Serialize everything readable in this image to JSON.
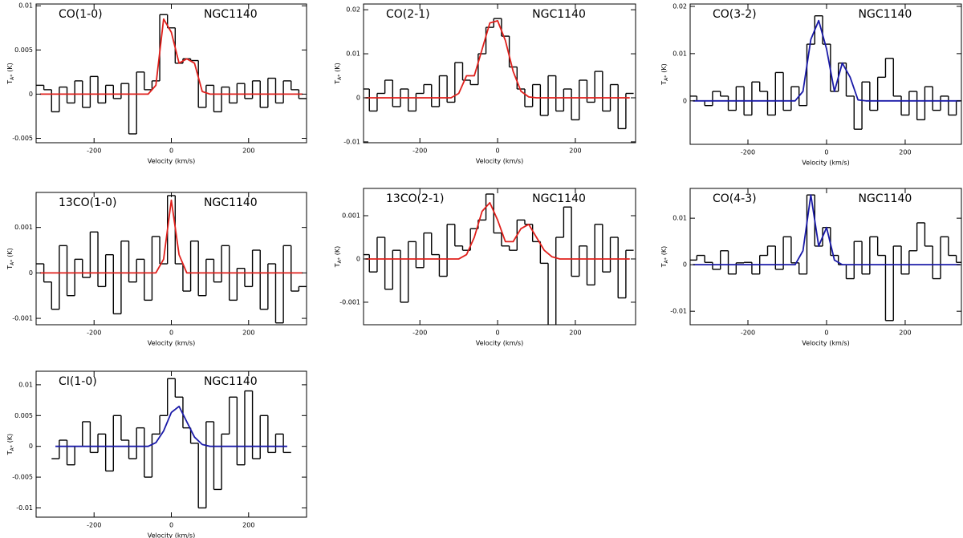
{
  "chart_data": [
    {
      "type": "line",
      "title": "CO(1-0)",
      "subtitle": "NGC1140",
      "xlabel": "Velocity (km/s)",
      "ylabel": {
        "main": "T",
        "sub": "A*",
        "unit": "(K)"
      },
      "xlim": [
        -350,
        350
      ],
      "ylim": [
        -0.0055,
        0.0102
      ],
      "xticks": [
        -200,
        0,
        200
      ],
      "yticks": [
        -0.005,
        0,
        0.005,
        0.01
      ],
      "x": [
        -340,
        -320,
        -300,
        -280,
        -260,
        -240,
        -220,
        -200,
        -180,
        -160,
        -140,
        -120,
        -100,
        -80,
        -60,
        -40,
        -20,
        0,
        20,
        40,
        60,
        80,
        100,
        120,
        140,
        160,
        180,
        200,
        220,
        240,
        260,
        280,
        300,
        320,
        340
      ],
      "series": [
        {
          "color": "#000000",
          "style": "step",
          "values": [
            0.001,
            0.0005,
            -0.002,
            0.0008,
            -0.001,
            0.0015,
            -0.0015,
            0.002,
            -0.001,
            0.001,
            -0.0005,
            0.0012,
            -0.0045,
            0.0025,
            0.0005,
            0.0015,
            0.009,
            0.0075,
            0.0035,
            0.004,
            0.0038,
            -0.0015,
            0.001,
            -0.002,
            0.0008,
            -0.001,
            0.0012,
            -0.0005,
            0.0015,
            -0.0015,
            0.0018,
            -0.001,
            0.0015,
            0.0005,
            -0.0005
          ]
        },
        {
          "color": "#e0201c",
          "style": "smooth",
          "values": [
            0,
            0,
            0,
            0,
            0,
            0,
            0,
            0,
            0,
            0,
            0,
            0,
            0,
            0,
            0,
            0.001,
            0.0085,
            0.007,
            0.0035,
            0.004,
            0.0035,
            0.0003,
            0,
            0,
            0,
            0,
            0,
            0,
            0,
            0,
            0,
            0,
            0,
            0,
            0
          ]
        }
      ]
    },
    {
      "type": "line",
      "title": "CO(2-1)",
      "subtitle": "NGC1140",
      "xlabel": "Velocity (km/s)",
      "ylabel": {
        "main": "T",
        "sub": "A*",
        "unit": "(K)"
      },
      "xlim": [
        -345,
        355
      ],
      "ylim": [
        -0.0102,
        0.0213
      ],
      "xticks": [
        -200,
        0,
        200
      ],
      "yticks": [
        -0.01,
        0,
        0.01,
        0.02
      ],
      "x": [
        -340,
        -320,
        -300,
        -280,
        -260,
        -240,
        -220,
        -200,
        -180,
        -160,
        -140,
        -120,
        -100,
        -80,
        -60,
        -40,
        -20,
        0,
        20,
        40,
        60,
        80,
        100,
        120,
        140,
        160,
        180,
        200,
        220,
        240,
        260,
        280,
        300,
        320,
        340
      ],
      "series": [
        {
          "color": "#000000",
          "style": "step",
          "values": [
            0.002,
            -0.003,
            0.001,
            0.004,
            -0.002,
            0.002,
            -0.003,
            0.001,
            0.003,
            -0.002,
            0.005,
            -0.001,
            0.008,
            0.004,
            0.003,
            0.01,
            0.016,
            0.018,
            0.014,
            0.007,
            0.002,
            -0.002,
            0.003,
            -0.004,
            0.005,
            -0.003,
            0.002,
            -0.005,
            0.004,
            -0.001,
            0.006,
            -0.003,
            0.003,
            -0.007,
            0.001
          ]
        },
        {
          "color": "#e0201c",
          "style": "smooth",
          "values": [
            0,
            0,
            0,
            0,
            0,
            0,
            0,
            0,
            0,
            0,
            0,
            0,
            0.001,
            0.005,
            0.005,
            0.011,
            0.017,
            0.0175,
            0.013,
            0.006,
            0.0015,
            0.0002,
            0,
            0,
            0,
            0,
            0,
            0,
            0,
            0,
            0,
            0,
            0,
            0,
            0
          ]
        }
      ]
    },
    {
      "type": "line",
      "title": "CO(3-2)",
      "subtitle": "NGC1140",
      "xlabel": "Velocity (km/s)",
      "ylabel": {
        "main": "T",
        "sub": "A*",
        "unit": "(K)"
      },
      "xlim": [
        -347,
        343
      ],
      "ylim": [
        -0.0092,
        0.0205
      ],
      "xticks": [
        -200,
        0,
        200
      ],
      "yticks": [
        0,
        0.01,
        0.02
      ],
      "x": [
        -340,
        -320,
        -300,
        -280,
        -260,
        -240,
        -220,
        -200,
        -180,
        -160,
        -140,
        -120,
        -100,
        -80,
        -60,
        -40,
        -20,
        0,
        20,
        40,
        60,
        80,
        100,
        120,
        140,
        160,
        180,
        200,
        220,
        240,
        260,
        280,
        300,
        320,
        340
      ],
      "series": [
        {
          "color": "#000000",
          "style": "step",
          "values": [
            0.001,
            0,
            -0.001,
            0.002,
            0.001,
            -0.002,
            0.003,
            -0.003,
            0.004,
            0.002,
            -0.003,
            0.006,
            -0.002,
            0.003,
            -0.001,
            0.012,
            0.018,
            0.012,
            0.002,
            0.008,
            0.001,
            -0.006,
            0.004,
            -0.002,
            0.005,
            0.009,
            0.001,
            -0.003,
            0.002,
            -0.004,
            0.003,
            -0.002,
            0.001,
            -0.003,
            0
          ]
        },
        {
          "color": "#1a1aa8",
          "style": "smooth",
          "values": [
            0,
            0,
            0,
            0,
            0,
            0,
            0,
            0,
            0,
            0,
            0,
            0,
            0,
            0,
            0.002,
            0.013,
            0.017,
            0.011,
            0.002,
            0.008,
            0.005,
            0.0002,
            0,
            0,
            0,
            0,
            0,
            0,
            0,
            0,
            0,
            0,
            0,
            0,
            0
          ]
        }
      ]
    },
    {
      "type": "line",
      "title": "13CO(1-0)",
      "subtitle": "NGC1140",
      "xlabel": "Velocity (km/s)",
      "ylabel": {
        "main": "T",
        "sub": "A*",
        "unit": "(K)"
      },
      "xlim": [
        -350,
        350
      ],
      "ylim": [
        -0.00114,
        0.00177
      ],
      "xticks": [
        -200,
        0,
        200
      ],
      "yticks": [
        -0.001,
        0,
        0.001
      ],
      "x": [
        -340,
        -320,
        -300,
        -280,
        -260,
        -240,
        -220,
        -200,
        -180,
        -160,
        -140,
        -120,
        -100,
        -80,
        -60,
        -40,
        -20,
        0,
        20,
        40,
        60,
        80,
        100,
        120,
        140,
        160,
        180,
        200,
        220,
        240,
        260,
        280,
        300,
        320,
        340
      ],
      "series": [
        {
          "color": "#000000",
          "style": "step",
          "values": [
            0.0002,
            -0.0002,
            -0.0008,
            0.0006,
            -0.0005,
            0.0003,
            -0.0001,
            0.0009,
            -0.0003,
            0.0004,
            -0.0009,
            0.0007,
            -0.0002,
            0.0003,
            -0.0006,
            0.0008,
            0.0002,
            0.0017,
            0.0002,
            -0.0004,
            0.0007,
            -0.0005,
            0.0003,
            -0.0002,
            0.0006,
            -0.0006,
            0.0001,
            -0.0003,
            0.0005,
            -0.0008,
            0.0002,
            -0.0011,
            0.0006,
            -0.0004,
            -0.0003
          ]
        },
        {
          "color": "#e0201c",
          "style": "smooth",
          "values": [
            0,
            0,
            0,
            0,
            0,
            0,
            0,
            0,
            0,
            0,
            0,
            0,
            0,
            0,
            0,
            0,
            0.0003,
            0.0016,
            0.0004,
            0,
            0,
            0,
            0,
            0,
            0,
            0,
            0,
            0,
            0,
            0,
            0,
            0,
            0,
            0,
            0
          ]
        }
      ]
    },
    {
      "type": "line",
      "title": "13CO(2-1)",
      "subtitle": "NGC1140",
      "xlabel": "Velocity (km/s)",
      "ylabel": {
        "main": "T",
        "sub": "A*",
        "unit": "(K)"
      },
      "xlim": [
        -345,
        355
      ],
      "ylim": [
        -0.00152,
        0.00163
      ],
      "xticks": [
        -200,
        0,
        200
      ],
      "yticks": [
        -0.001,
        0,
        0.001
      ],
      "x": [
        -340,
        -320,
        -300,
        -280,
        -260,
        -240,
        -220,
        -200,
        -180,
        -160,
        -140,
        -120,
        -100,
        -80,
        -60,
        -40,
        -20,
        0,
        20,
        40,
        60,
        80,
        100,
        120,
        140,
        160,
        180,
        200,
        220,
        240,
        260,
        280,
        300,
        320,
        340
      ],
      "series": [
        {
          "color": "#000000",
          "style": "step",
          "values": [
            0.0001,
            -0.0003,
            0.0005,
            -0.0007,
            0.0002,
            -0.001,
            0.0004,
            -0.0002,
            0.0006,
            0.0001,
            -0.0004,
            0.0008,
            0.0003,
            0.0002,
            0.0007,
            0.0009,
            0.0015,
            0.0006,
            0.0003,
            0.0002,
            0.0009,
            0.0008,
            0.0004,
            -0.0001,
            -0.0016,
            0.0005,
            0.0012,
            -0.0004,
            0.0003,
            -0.0006,
            0.0008,
            -0.0003,
            0.0005,
            -0.0009,
            0.0002
          ]
        },
        {
          "color": "#e0201c",
          "style": "smooth",
          "values": [
            0,
            0,
            0,
            0,
            0,
            0,
            0,
            0,
            0,
            0,
            0,
            0,
            0,
            0.0001,
            0.0005,
            0.0011,
            0.0013,
            0.0009,
            0.0004,
            0.0004,
            0.0007,
            0.0008,
            0.0005,
            0.0002,
            5e-05,
            0,
            0,
            0,
            0,
            0,
            0,
            0,
            0,
            0,
            0
          ]
        }
      ]
    },
    {
      "type": "line",
      "title": "CO(4-3)",
      "subtitle": "NGC1140",
      "xlabel": "Velocity (km/s)",
      "ylabel": {
        "main": "T",
        "sub": "A*",
        "unit": "(K)"
      },
      "xlim": [
        -347,
        343
      ],
      "ylim": [
        -0.0129,
        0.0164
      ],
      "xticks": [
        -200,
        0,
        200
      ],
      "yticks": [
        -0.01,
        0,
        0.01
      ],
      "x": [
        -340,
        -320,
        -300,
        -280,
        -260,
        -240,
        -220,
        -200,
        -180,
        -160,
        -140,
        -120,
        -100,
        -80,
        -60,
        -40,
        -20,
        0,
        20,
        40,
        60,
        80,
        100,
        120,
        140,
        160,
        180,
        200,
        220,
        240,
        260,
        280,
        300,
        320,
        340
      ],
      "series": [
        {
          "color": "#000000",
          "style": "step",
          "values": [
            0.001,
            0.002,
            0.0005,
            -0.001,
            0.003,
            -0.002,
            0.0004,
            0.0005,
            -0.002,
            0.002,
            0.004,
            -0.001,
            0.006,
            0.0004,
            -0.002,
            0.015,
            0.004,
            0.008,
            0.002,
            0,
            -0.003,
            0.005,
            -0.002,
            0.006,
            0.002,
            -0.012,
            0.004,
            -0.002,
            0.003,
            0.009,
            0.004,
            -0.003,
            0.006,
            0.002,
            0.0005
          ]
        },
        {
          "color": "#1a1aa8",
          "style": "smooth",
          "values": [
            0,
            0,
            0,
            0,
            0,
            0,
            0,
            0,
            0,
            0,
            0,
            0,
            0,
            0,
            0.003,
            0.015,
            0.004,
            0.008,
            0.001,
            0,
            0,
            0,
            0,
            0,
            0,
            0,
            0,
            0,
            0,
            0,
            0,
            0,
            0,
            0,
            0
          ]
        }
      ]
    },
    {
      "type": "line",
      "title": "CI(1-0)",
      "subtitle": "NGC1140",
      "xlabel": "Velocity (km/s)",
      "ylabel": {
        "main": "T",
        "sub": "A*",
        "unit": "(K)"
      },
      "xlim": [
        -350,
        350
      ],
      "ylim": [
        -0.0115,
        0.0122
      ],
      "xticks": [
        -200,
        0,
        200
      ],
      "yticks": [
        -0.01,
        -0.005,
        0,
        0.005,
        0.01
      ],
      "x": [
        -340,
        -320,
        -300,
        -280,
        -260,
        -240,
        -220,
        -200,
        -180,
        -160,
        -140,
        -120,
        -100,
        -80,
        -60,
        -40,
        -20,
        0,
        20,
        40,
        60,
        80,
        100,
        120,
        140,
        160,
        180,
        200,
        220,
        240,
        260,
        280,
        300,
        320,
        340
      ],
      "series": [
        {
          "color": "#000000",
          "style": "step",
          "values": [
            null,
            null,
            -0.002,
            0.001,
            -0.003,
            0,
            0.004,
            -0.001,
            0.002,
            -0.004,
            0.005,
            0.001,
            -0.002,
            0.003,
            -0.005,
            0.002,
            0.005,
            0.011,
            0.008,
            0.003,
            0.0005,
            -0.01,
            0.004,
            -0.007,
            0.002,
            0.008,
            -0.003,
            0.009,
            -0.002,
            0.005,
            -0.001,
            0.002,
            -0.001,
            null,
            null
          ]
        },
        {
          "color": "#1a1aa8",
          "style": "smooth",
          "values": [
            null,
            null,
            0,
            0,
            0,
            0,
            0,
            0,
            0,
            0,
            0,
            0,
            0,
            0,
            0,
            0.0006,
            0.0025,
            0.0055,
            0.0065,
            0.004,
            0.0015,
            0.0003,
            0,
            0,
            0,
            0,
            0,
            0,
            0,
            0,
            0,
            0,
            0,
            null,
            null
          ]
        }
      ]
    }
  ]
}
